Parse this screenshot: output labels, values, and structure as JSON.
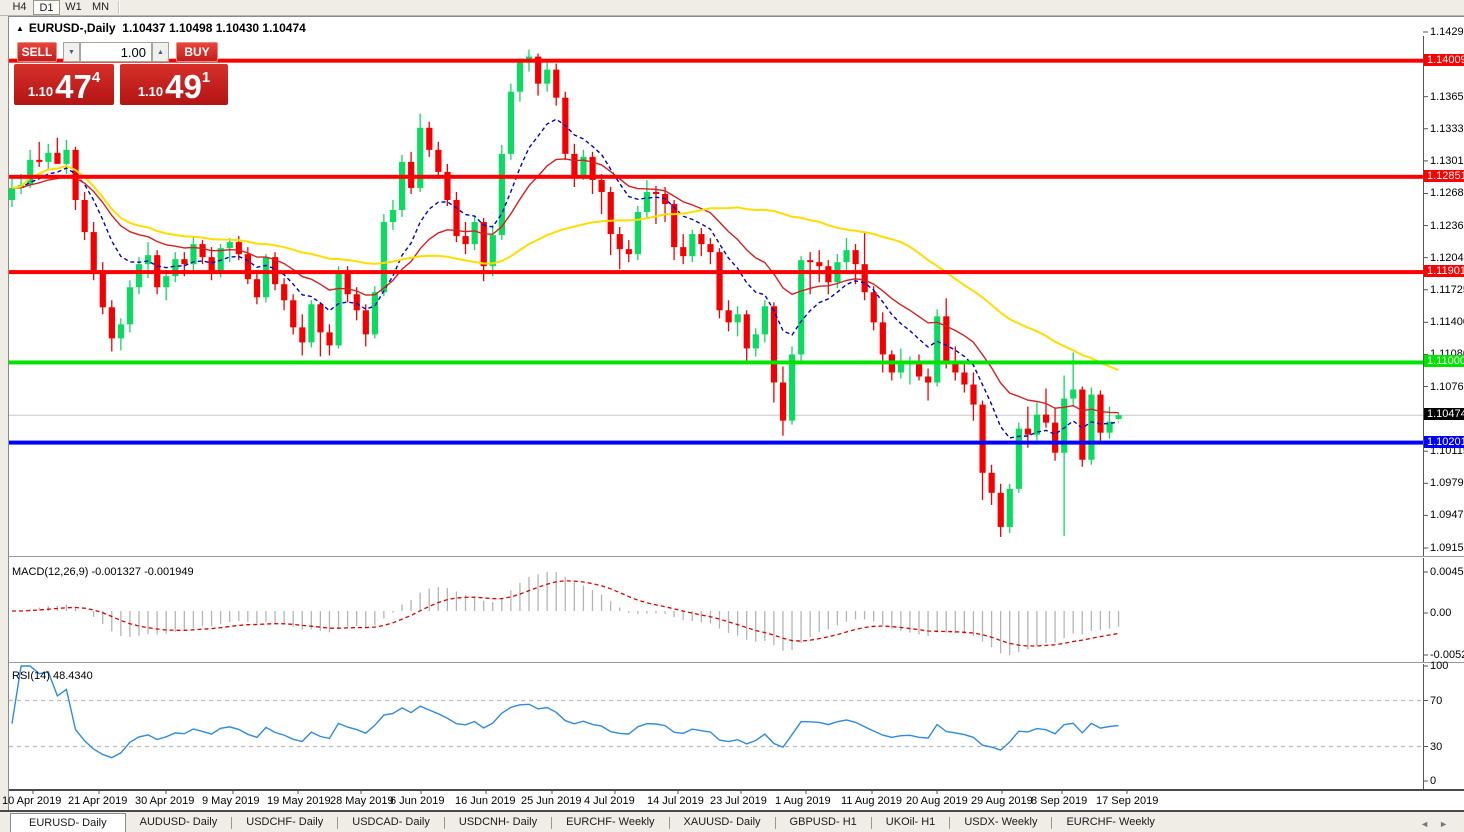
{
  "toolbar": {
    "timeframes": [
      {
        "label": "H4",
        "active": false
      },
      {
        "label": "D1",
        "active": true
      },
      {
        "label": "W1",
        "active": false
      },
      {
        "label": "MN",
        "active": false
      }
    ]
  },
  "chart_header": {
    "symbol": "EURUSD-,Daily",
    "ohlc": "1.10437 1.10498 1.10430 1.10474"
  },
  "trade_panel": {
    "sell_label": "SELL",
    "buy_label": "BUY",
    "volume": "1.00",
    "sell_price": {
      "prefix": "1.10",
      "big": "47",
      "sup": "4"
    },
    "buy_price": {
      "prefix": "1.10",
      "big": "49",
      "sup": "1"
    }
  },
  "icons": {
    "collapse": "▲",
    "volume_down": "▼",
    "volume_up": "▲",
    "tab_scroll_left": "◄",
    "tab_scroll_right": "►"
  },
  "bottom_tabs": [
    {
      "label": "EURUSD- Daily",
      "active": true
    },
    {
      "label": "AUDUSD- Daily",
      "active": false
    },
    {
      "label": "USDCHF- Daily",
      "active": false
    },
    {
      "label": "USDCAD- Daily",
      "active": false
    },
    {
      "label": "USDCNH- Daily",
      "active": false
    },
    {
      "label": "EURCHF- Weekly",
      "active": false
    },
    {
      "label": "XAUUSD- Daily",
      "active": false
    },
    {
      "label": "GBPUSD- H1",
      "active": false
    },
    {
      "label": "UKOil- H1",
      "active": false
    },
    {
      "label": "USDX- Weekly",
      "active": false
    },
    {
      "label": "EURCHF- Weekly",
      "active": false
    }
  ],
  "chart_data": {
    "type": "candlestick",
    "symbol": "EURUSD-",
    "timeframe": "Daily",
    "colors": {
      "bull": "#0BDC61",
      "bear": "#F50000",
      "ma_fast": "#0000C8",
      "ma_mid": "#D62020",
      "ma_slow": "#FFDD00",
      "level_red": "#FF0000",
      "level_green": "#00E400",
      "level_blue": "#0000FF",
      "current_line": "#C8C8C8",
      "current_badge": "#000000",
      "macd_hist": "#B4B4B4",
      "macd_signal": "#E00000",
      "rsi_line": "#2E8BE0",
      "rsi_level": "#BBBBBB"
    },
    "y_axis_ticks": [
      "1.14295",
      "1.13650",
      "1.13330",
      "1.13010",
      "1.12685",
      "1.12365",
      "1.12045",
      "1.11725",
      "1.11400",
      "1.11080",
      "1.10760",
      "1.10115",
      "1.09795",
      "1.09475",
      "1.09150"
    ],
    "x_axis_dates": [
      "10 Apr 2019",
      "21 Apr 2019",
      "30 Apr 2019",
      "9 May 2019",
      "19 May 2019",
      "28 May 2019",
      "6 Jun 2019",
      "16 Jun 2019",
      "25 Jun 2019",
      "4 Jul 2019",
      "14 Jul 2019",
      "23 Jul 2019",
      "1 Aug 2019",
      "11 Aug 2019",
      "20 Aug 2019",
      "29 Aug 2019",
      "8 Sep 2019",
      "17 Sep 2019"
    ],
    "price_range": {
      "top": 1.14295,
      "bottom": 1.0915
    },
    "levels": [
      {
        "price": 1.14009,
        "label": "1.14009",
        "color": "#FF0000"
      },
      {
        "price": 1.12851,
        "label": "1.12851",
        "color": "#FF0000"
      },
      {
        "price": 1.11901,
        "label": "1.11901",
        "color": "#FF0000"
      },
      {
        "price": 1.11,
        "label": "1.11000",
        "color": "#00E400"
      },
      {
        "price": 1.10201,
        "label": "1.10201",
        "color": "#0000FF"
      }
    ],
    "current_price": {
      "value": 1.10474,
      "label": "1.10474"
    },
    "moving_averages": [
      {
        "name": "fast",
        "method": "ema",
        "period": 10,
        "color": "#0000C8",
        "style": "dashed"
      },
      {
        "name": "mid",
        "method": "ema",
        "period": 20,
        "color": "#D62020",
        "style": "solid"
      },
      {
        "name": "slow",
        "method": "sma",
        "period": 45,
        "color": "#FFDD00",
        "style": "solid"
      }
    ],
    "macd": {
      "label": "MACD(12,26,9) -0.001327 -0.001949",
      "params": [
        12,
        26,
        9
      ],
      "main_value": -0.001327,
      "signal_value": -0.001949,
      "axis_ticks": [
        "0.004536",
        "0.00",
        "-0.005205"
      ],
      "scale_max": 0.004536,
      "scale_min": -0.005205
    },
    "rsi": {
      "label": "RSI(14) 48.4340",
      "period": 14,
      "value": 48.434,
      "levels": [
        70,
        30
      ],
      "axis_ticks": [
        "100",
        "70",
        "30",
        "0"
      ]
    },
    "candles": [
      [
        1.1262,
        1.1285,
        1.1255,
        1.1274
      ],
      [
        1.1274,
        1.1288,
        1.1268,
        1.1277
      ],
      [
        1.1277,
        1.1312,
        1.1274,
        1.1302
      ],
      [
        1.1302,
        1.132,
        1.1295,
        1.13
      ],
      [
        1.13,
        1.1318,
        1.1292,
        1.1309
      ],
      [
        1.1309,
        1.1324,
        1.1298,
        1.1298
      ],
      [
        1.1298,
        1.1322,
        1.1288,
        1.1312
      ],
      [
        1.1312,
        1.1315,
        1.1252,
        1.1262
      ],
      [
        1.1262,
        1.127,
        1.1222,
        1.123
      ],
      [
        1.123,
        1.124,
        1.1182,
        1.1192
      ],
      [
        1.1192,
        1.12,
        1.1148,
        1.1155
      ],
      [
        1.1155,
        1.1162,
        1.1111,
        1.1124
      ],
      [
        1.1124,
        1.1144,
        1.1112,
        1.1138
      ],
      [
        1.1138,
        1.1182,
        1.113,
        1.1175
      ],
      [
        1.1175,
        1.1205,
        1.1168,
        1.1198
      ],
      [
        1.1198,
        1.122,
        1.1184,
        1.1207
      ],
      [
        1.1207,
        1.1212,
        1.1168,
        1.1175
      ],
      [
        1.1175,
        1.1192,
        1.1162,
        1.1186
      ],
      [
        1.1186,
        1.121,
        1.118,
        1.1203
      ],
      [
        1.1203,
        1.121,
        1.1186,
        1.1198
      ],
      [
        1.1198,
        1.1225,
        1.1192,
        1.1218
      ],
      [
        1.1218,
        1.1222,
        1.1198,
        1.1205
      ],
      [
        1.1205,
        1.1215,
        1.1182,
        1.119
      ],
      [
        1.119,
        1.1218,
        1.1185,
        1.1214
      ],
      [
        1.1214,
        1.1224,
        1.12,
        1.122
      ],
      [
        1.122,
        1.1226,
        1.1202,
        1.1208
      ],
      [
        1.1208,
        1.1215,
        1.1178,
        1.1183
      ],
      [
        1.1183,
        1.1192,
        1.1158,
        1.1165
      ],
      [
        1.1165,
        1.1208,
        1.116,
        1.1205
      ],
      [
        1.1205,
        1.121,
        1.1172,
        1.1178
      ],
      [
        1.1178,
        1.1184,
        1.1152,
        1.1162
      ],
      [
        1.1162,
        1.1168,
        1.1128,
        1.1135
      ],
      [
        1.1135,
        1.1148,
        1.1107,
        1.112
      ],
      [
        1.112,
        1.1162,
        1.1115,
        1.1158
      ],
      [
        1.1158,
        1.116,
        1.1106,
        1.113
      ],
      [
        1.113,
        1.1138,
        1.1107,
        1.1117
      ],
      [
        1.1117,
        1.1196,
        1.1114,
        1.119
      ],
      [
        1.119,
        1.1196,
        1.116,
        1.1168
      ],
      [
        1.1168,
        1.1175,
        1.1142,
        1.1152
      ],
      [
        1.1152,
        1.1158,
        1.1116,
        1.1128
      ],
      [
        1.1128,
        1.1176,
        1.1124,
        1.117
      ],
      [
        1.117,
        1.1248,
        1.1166,
        1.124
      ],
      [
        1.124,
        1.1262,
        1.1232,
        1.1252
      ],
      [
        1.1252,
        1.1307,
        1.1245,
        1.13
      ],
      [
        1.13,
        1.131,
        1.1268,
        1.1274
      ],
      [
        1.1274,
        1.1348,
        1.127,
        1.1334
      ],
      [
        1.1334,
        1.134,
        1.1305,
        1.1312
      ],
      [
        1.1312,
        1.132,
        1.1283,
        1.129
      ],
      [
        1.129,
        1.1298,
        1.1256,
        1.1262
      ],
      [
        1.1262,
        1.127,
        1.122,
        1.1226
      ],
      [
        1.1226,
        1.124,
        1.1208,
        1.1218
      ],
      [
        1.1218,
        1.1246,
        1.1212,
        1.124
      ],
      [
        1.124,
        1.1244,
        1.1181,
        1.1196
      ],
      [
        1.1196,
        1.1237,
        1.1186,
        1.1227
      ],
      [
        1.1227,
        1.1317,
        1.1222,
        1.1308
      ],
      [
        1.1308,
        1.1378,
        1.1302,
        1.137
      ],
      [
        1.137,
        1.1403,
        1.136,
        1.1399
      ],
      [
        1.1399,
        1.1412,
        1.139,
        1.1405
      ],
      [
        1.1405,
        1.1408,
        1.1366,
        1.1378
      ],
      [
        1.1378,
        1.14,
        1.137,
        1.1392
      ],
      [
        1.1392,
        1.1398,
        1.1356,
        1.1364
      ],
      [
        1.1364,
        1.137,
        1.1302,
        1.1308
      ],
      [
        1.1308,
        1.1318,
        1.1275,
        1.1285
      ],
      [
        1.1285,
        1.1312,
        1.1282,
        1.1305
      ],
      [
        1.1305,
        1.131,
        1.1268,
        1.1282
      ],
      [
        1.1282,
        1.1288,
        1.1248,
        1.127
      ],
      [
        1.127,
        1.1275,
        1.1207,
        1.1228
      ],
      [
        1.1228,
        1.1235,
        1.1193,
        1.1213
      ],
      [
        1.1213,
        1.1222,
        1.12,
        1.1208
      ],
      [
        1.1208,
        1.1256,
        1.1202,
        1.125
      ],
      [
        1.125,
        1.1282,
        1.1244,
        1.127
      ],
      [
        1.127,
        1.1276,
        1.1238,
        1.1268
      ],
      [
        1.1268,
        1.1275,
        1.124,
        1.1258
      ],
      [
        1.1258,
        1.1262,
        1.1202,
        1.1215
      ],
      [
        1.1215,
        1.1228,
        1.1198,
        1.1206
      ],
      [
        1.1206,
        1.1232,
        1.12,
        1.1228
      ],
      [
        1.1228,
        1.1234,
        1.1206,
        1.1218
      ],
      [
        1.1218,
        1.1224,
        1.1198,
        1.121
      ],
      [
        1.121,
        1.1214,
        1.1144,
        1.1152
      ],
      [
        1.1152,
        1.1162,
        1.1131,
        1.114
      ],
      [
        1.114,
        1.1156,
        1.1126,
        1.1148
      ],
      [
        1.1148,
        1.1152,
        1.1101,
        1.1114
      ],
      [
        1.1114,
        1.1134,
        1.1106,
        1.1128
      ],
      [
        1.1128,
        1.1162,
        1.112,
        1.1156
      ],
      [
        1.1156,
        1.116,
        1.106,
        1.108
      ],
      [
        1.108,
        1.1096,
        1.1027,
        1.1042
      ],
      [
        1.1042,
        1.1116,
        1.1038,
        1.1108
      ],
      [
        1.1108,
        1.1206,
        1.1102,
        1.1202
      ],
      [
        1.1202,
        1.121,
        1.1168,
        1.12
      ],
      [
        1.12,
        1.1212,
        1.118,
        1.1196
      ],
      [
        1.1196,
        1.1202,
        1.1168,
        1.118
      ],
      [
        1.118,
        1.1208,
        1.1174,
        1.12
      ],
      [
        1.12,
        1.1224,
        1.1188,
        1.1212
      ],
      [
        1.1212,
        1.1218,
        1.1178,
        1.1198
      ],
      [
        1.1198,
        1.123,
        1.1162,
        1.117
      ],
      [
        1.117,
        1.1176,
        1.1132,
        1.114
      ],
      [
        1.114,
        1.115,
        1.109,
        1.1108
      ],
      [
        1.1108,
        1.1112,
        1.1082,
        1.109
      ],
      [
        1.109,
        1.1114,
        1.1084,
        1.1098
      ],
      [
        1.1098,
        1.1106,
        1.1078,
        1.11
      ],
      [
        1.11,
        1.1108,
        1.1082,
        1.1086
      ],
      [
        1.1086,
        1.1094,
        1.1062,
        1.108
      ],
      [
        1.108,
        1.1153,
        1.1076,
        1.1146
      ],
      [
        1.1146,
        1.1164,
        1.1094,
        1.11
      ],
      [
        1.11,
        1.1116,
        1.1082,
        1.109
      ],
      [
        1.109,
        1.1098,
        1.107,
        1.1078
      ],
      [
        1.1078,
        1.109,
        1.1042,
        1.1058
      ],
      [
        1.1058,
        1.1062,
        1.0963,
        1.099
      ],
      [
        1.099,
        1.0998,
        1.0958,
        1.097
      ],
      [
        1.097,
        1.0979,
        1.0926,
        1.0936
      ],
      [
        1.0936,
        1.0979,
        1.093,
        1.0974
      ],
      [
        1.0974,
        1.104,
        1.097,
        1.1034
      ],
      [
        1.1034,
        1.1056,
        1.1015,
        1.1028
      ],
      [
        1.1028,
        1.106,
        1.1022,
        1.1048
      ],
      [
        1.1048,
        1.1074,
        1.1035,
        1.104
      ],
      [
        1.104,
        1.1054,
        1.1002,
        1.101
      ],
      [
        1.101,
        1.1087,
        1.0927,
        1.1064
      ],
      [
        1.1064,
        1.111,
        1.1056,
        1.1073
      ],
      [
        1.1073,
        1.1076,
        1.0996,
        1.1003
      ],
      [
        1.1003,
        1.1075,
        1.0998,
        1.1068
      ],
      [
        1.1068,
        1.1072,
        1.1022,
        1.103
      ],
      [
        1.103,
        1.1056,
        1.1024,
        1.1041
      ],
      [
        1.10437,
        1.10498,
        1.1043,
        1.10474
      ]
    ]
  }
}
